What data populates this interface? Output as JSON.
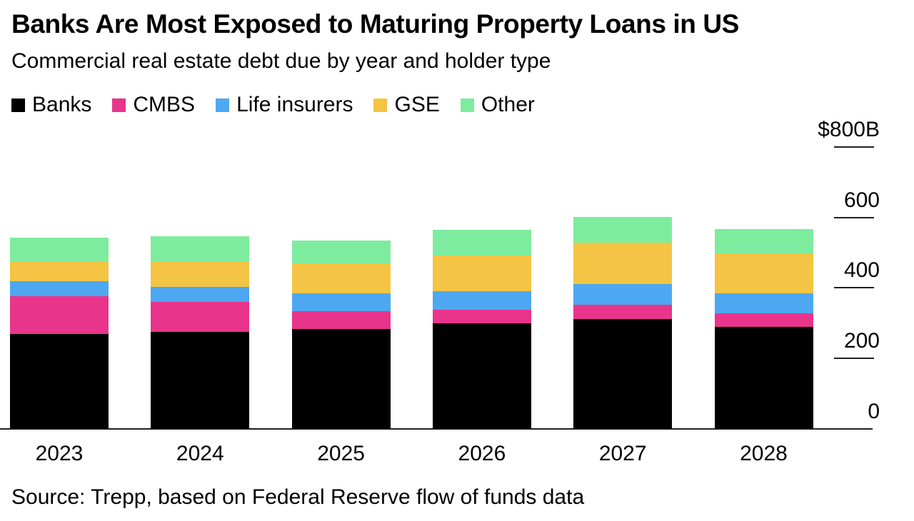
{
  "chart_data": {
    "type": "bar",
    "stacked": true,
    "title": "Banks Are Most Exposed to Maturing Property Loans in US",
    "subtitle": "Commercial real estate debt due by year and holder type",
    "source": "Source: Trepp, based on Federal Reserve flow of funds data",
    "categories": [
      "2023",
      "2024",
      "2025",
      "2026",
      "2027",
      "2028"
    ],
    "series": [
      {
        "name": "Banks",
        "color": "#000000",
        "values": [
          270,
          276,
          283,
          299,
          312,
          290
        ]
      },
      {
        "name": "CMBS",
        "color": "#E9348B",
        "values": [
          106,
          84,
          52,
          39,
          40,
          37
        ]
      },
      {
        "name": "Life insurers",
        "color": "#4EA8F1",
        "values": [
          43,
          42,
          50,
          52,
          58,
          58
        ]
      },
      {
        "name": "GSE",
        "color": "#F4C445",
        "values": [
          57,
          73,
          84,
          102,
          119,
          114
        ]
      },
      {
        "name": "Other",
        "color": "#7EEC9E",
        "values": [
          66,
          71,
          65,
          72,
          73,
          67
        ]
      }
    ],
    "ylabel": "",
    "ylim": [
      0,
      800
    ],
    "y_ticks": [
      {
        "label": "$800B",
        "value": 800
      },
      {
        "label": "600",
        "value": 600
      },
      {
        "label": "400",
        "value": 400
      },
      {
        "label": "200",
        "value": 200
      },
      {
        "label": "0",
        "value": 0
      }
    ],
    "legend_position": "top",
    "grid": false,
    "axis_line_color": "#1f1f1f",
    "units": "billions of US dollars"
  }
}
